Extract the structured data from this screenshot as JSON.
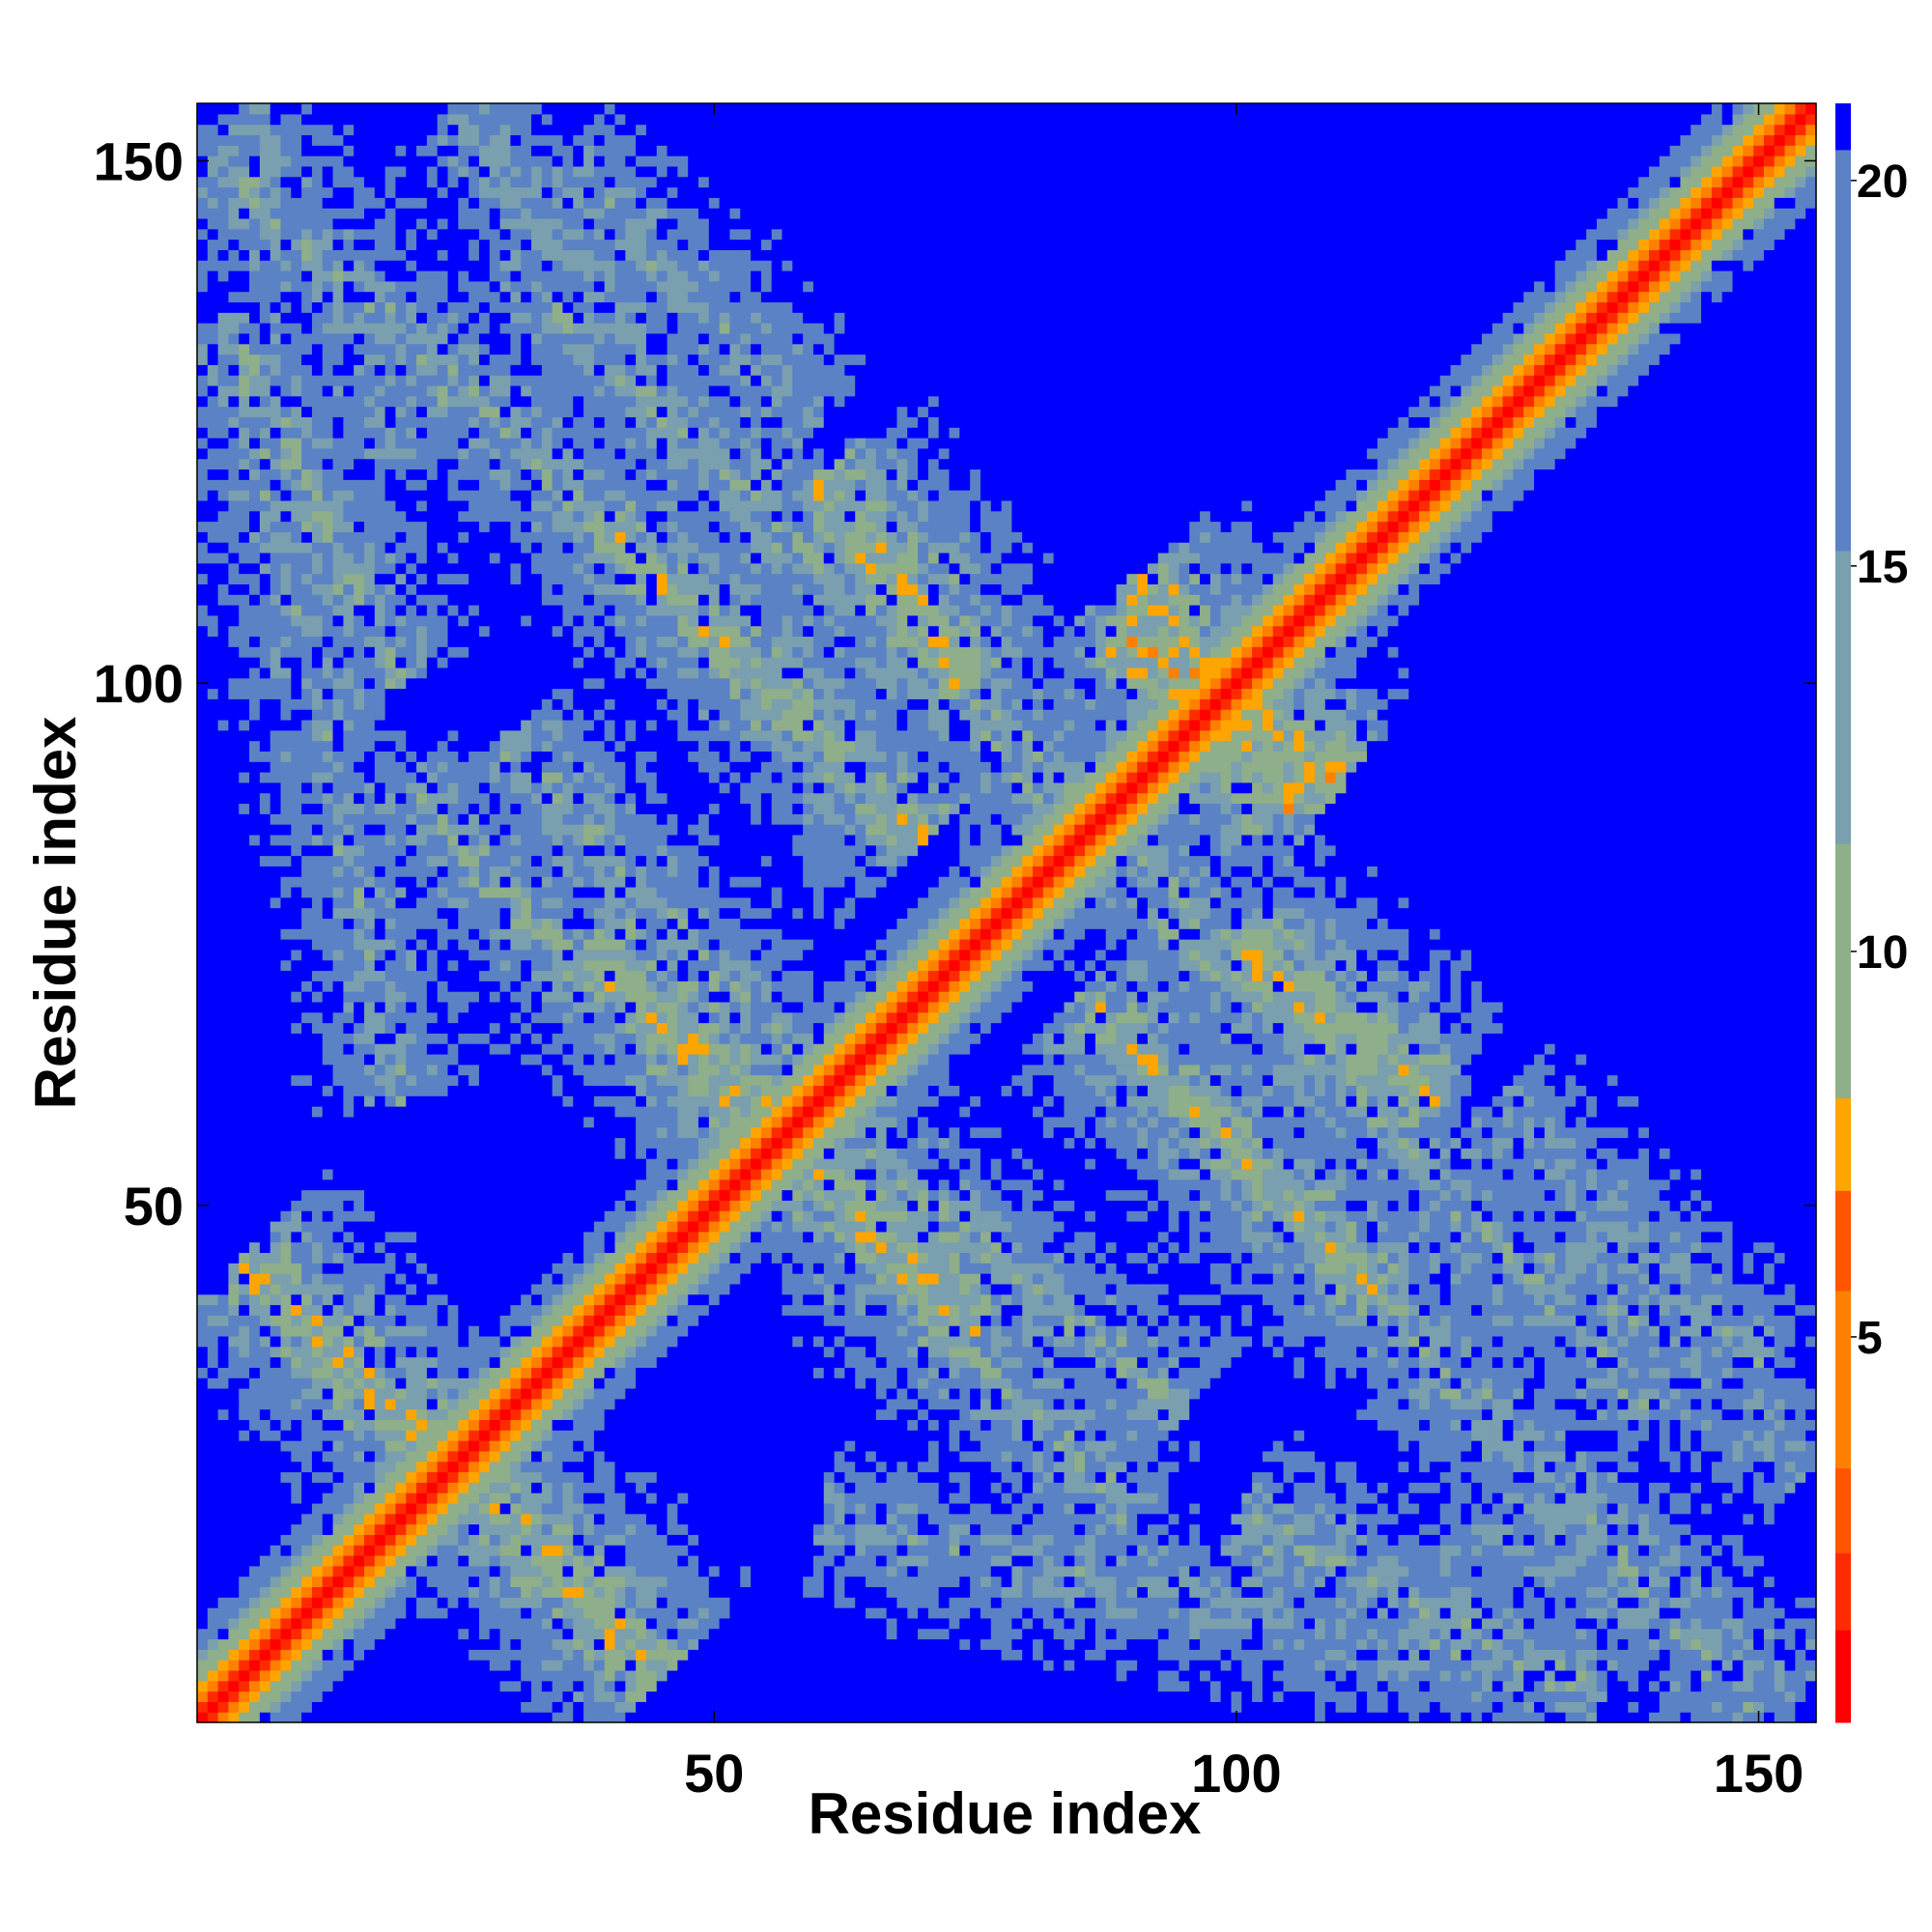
{
  "chart_data": {
    "type": "heatmap",
    "title": "",
    "xlabel": "Residue index",
    "ylabel": "Residue index",
    "x_range": [
      1,
      155
    ],
    "y_range": [
      1,
      155
    ],
    "x_ticks": [
      50,
      100,
      150
    ],
    "y_ticks": [
      50,
      100,
      150
    ],
    "colorbar": {
      "ticks": [
        5,
        10,
        15,
        20
      ],
      "range": [
        0,
        21
      ],
      "colors": [
        "#ff0000",
        "#ff2b00",
        "#ff5500",
        "#ff8000",
        "#ffa500",
        "#8fae8a",
        "#7a9fae",
        "#5a82c4",
        "#0000ff"
      ]
    },
    "cap_value": 21,
    "diagonal_contacts": "distance increases from ~0 on the diagonal",
    "contact_bands": [
      {
        "i_start": 2,
        "i_end": 50,
        "j_start": 150,
        "j_end": 105,
        "level": 13
      },
      {
        "i_start": 5,
        "i_end": 35,
        "j_start": 45,
        "j_end": 15,
        "level": 10
      },
      {
        "i_start": 30,
        "i_end": 90,
        "j_start": 140,
        "j_end": 80,
        "level": 14
      },
      {
        "i_start": 40,
        "i_end": 70,
        "j_start": 115,
        "j_end": 85,
        "level": 11
      },
      {
        "i_start": 20,
        "i_end": 60,
        "j_start": 90,
        "j_end": 50,
        "level": 13
      },
      {
        "i_start": 38,
        "i_end": 58,
        "j_start": 75,
        "j_end": 55,
        "level": 10
      },
      {
        "i_start": 35,
        "i_end": 60,
        "j_start": 150,
        "j_end": 125,
        "level": 14
      },
      {
        "i_start": 5,
        "i_end": 20,
        "j_start": 155,
        "j_end": 120,
        "level": 15
      },
      {
        "i_start": 60,
        "i_end": 130,
        "j_start": 20,
        "j_end": 5,
        "level": 14
      },
      {
        "i_start": 100,
        "i_end": 135,
        "j_start": 20,
        "j_end": 3,
        "level": 13
      },
      {
        "i_start": 85,
        "i_end": 130,
        "j_start": 90,
        "j_end": 40,
        "level": 13
      },
      {
        "i_start": 100,
        "i_end": 120,
        "j_start": 75,
        "j_end": 60,
        "level": 10
      },
      {
        "i_start": 130,
        "i_end": 155,
        "j_start": 45,
        "j_end": 25,
        "level": 14
      },
      {
        "i_start": 60,
        "i_end": 95,
        "j_start": 60,
        "j_end": 30,
        "level": 13
      },
      {
        "i_start": 88,
        "i_end": 110,
        "j_start": 105,
        "j_end": 90,
        "level": 9
      }
    ]
  }
}
